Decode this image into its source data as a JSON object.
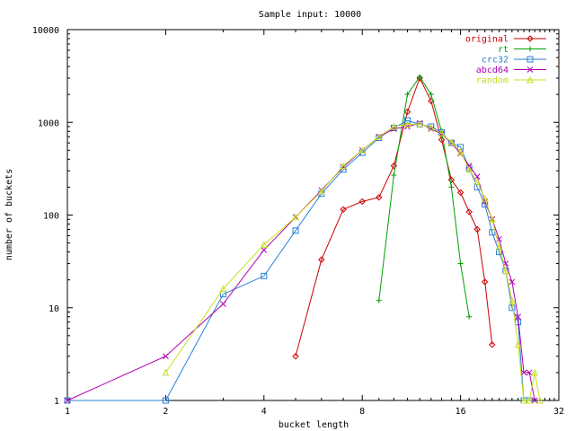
{
  "chart_data": {
    "type": "line",
    "title": "Sample input: 10000",
    "xlabel": "bucket length",
    "ylabel": "number of buckets",
    "x_scale": "log2",
    "y_scale": "log10",
    "xlim": [
      1,
      32
    ],
    "ylim": [
      1,
      10000
    ],
    "x_ticks": [
      1,
      2,
      4,
      8,
      16,
      32
    ],
    "y_ticks": [
      1,
      10,
      100,
      1000,
      10000
    ],
    "grid": false,
    "legend_position": "top-right",
    "series": [
      {
        "name": "original",
        "color": "#cc0000",
        "marker": "diamond",
        "points": [
          [
            5,
            3
          ],
          [
            6,
            33
          ],
          [
            7,
            115
          ],
          [
            8,
            140
          ],
          [
            9,
            155
          ],
          [
            10,
            340
          ],
          [
            11,
            1300
          ],
          [
            12,
            3000
          ],
          [
            13,
            1700
          ],
          [
            14,
            650
          ],
          [
            15,
            240
          ],
          [
            16,
            175
          ],
          [
            17,
            108
          ],
          [
            18,
            70
          ],
          [
            19,
            19
          ],
          [
            20,
            4
          ]
        ]
      },
      {
        "name": "rt",
        "color": "#00a000",
        "marker": "plus",
        "points": [
          [
            9,
            12
          ],
          [
            10,
            270
          ],
          [
            11,
            2000
          ],
          [
            12,
            3100
          ],
          [
            13,
            2000
          ],
          [
            14,
            800
          ],
          [
            15,
            200
          ],
          [
            16,
            30
          ],
          [
            17,
            8
          ]
        ]
      },
      {
        "name": "crc32",
        "color": "#2a7fd4",
        "marker": "square",
        "points": [
          [
            1,
            1
          ],
          [
            2,
            1
          ],
          [
            3,
            14
          ],
          [
            4,
            22
          ],
          [
            5,
            68
          ],
          [
            6,
            170
          ],
          [
            7,
            310
          ],
          [
            8,
            470
          ],
          [
            9,
            680
          ],
          [
            10,
            870
          ],
          [
            11,
            1050
          ],
          [
            12,
            950
          ],
          [
            13,
            900
          ],
          [
            14,
            780
          ],
          [
            15,
            600
          ],
          [
            16,
            540
          ],
          [
            17,
            320
          ],
          [
            18,
            200
          ],
          [
            19,
            130
          ],
          [
            20,
            65
          ],
          [
            21,
            40
          ],
          [
            22,
            25
          ],
          [
            23,
            10
          ],
          [
            24,
            7
          ],
          [
            25,
            1
          ],
          [
            26,
            1
          ]
        ]
      },
      {
        "name": "abcd64",
        "color": "#b000b0",
        "marker": "x",
        "points": [
          [
            1,
            1
          ],
          [
            2,
            3
          ],
          [
            3,
            11
          ],
          [
            4,
            42
          ],
          [
            5,
            95
          ],
          [
            6,
            185
          ],
          [
            7,
            330
          ],
          [
            8,
            500
          ],
          [
            9,
            700
          ],
          [
            10,
            850
          ],
          [
            11,
            900
          ],
          [
            12,
            980
          ],
          [
            13,
            850
          ],
          [
            14,
            750
          ],
          [
            15,
            600
          ],
          [
            16,
            460
          ],
          [
            17,
            340
          ],
          [
            18,
            260
          ],
          [
            19,
            140
          ],
          [
            20,
            90
          ],
          [
            21,
            55
          ],
          [
            22,
            30
          ],
          [
            23,
            19
          ],
          [
            24,
            8
          ],
          [
            25,
            2
          ],
          [
            26,
            2
          ],
          [
            27,
            1
          ]
        ]
      },
      {
        "name": "random",
        "color": "#c8e020",
        "marker": "triangle",
        "points": [
          [
            2,
            2
          ],
          [
            3,
            16
          ],
          [
            4,
            48
          ],
          [
            5,
            95
          ],
          [
            6,
            180
          ],
          [
            7,
            340
          ],
          [
            8,
            500
          ],
          [
            9,
            700
          ],
          [
            10,
            900
          ],
          [
            11,
            950
          ],
          [
            12,
            960
          ],
          [
            13,
            880
          ],
          [
            14,
            760
          ],
          [
            15,
            610
          ],
          [
            16,
            480
          ],
          [
            17,
            310
          ],
          [
            18,
            230
          ],
          [
            19,
            150
          ],
          [
            20,
            90
          ],
          [
            21,
            45
          ],
          [
            22,
            25
          ],
          [
            23,
            12
          ],
          [
            24,
            4
          ],
          [
            25,
            1
          ],
          [
            26,
            1
          ],
          [
            27,
            2
          ],
          [
            28,
            1
          ]
        ]
      }
    ]
  }
}
